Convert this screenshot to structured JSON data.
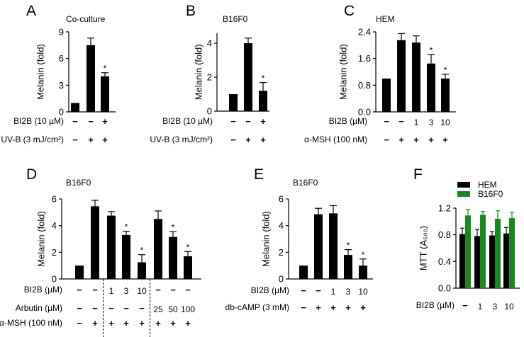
{
  "colors": {
    "black_bar": "#000000",
    "green_bar": "#178a1e"
  },
  "chart_data": [
    {
      "panel": "A",
      "title": "Co-culture",
      "type": "bar",
      "ylabel": "Melanin (fold)",
      "ylim": [
        0,
        9
      ],
      "tick_labels": [
        "0",
        "3",
        "6",
        "9"
      ],
      "series": [
        {
          "values": [
            1.0,
            7.5,
            4.0
          ],
          "error_upper": [
            1.0,
            8.3,
            4.4
          ],
          "significant": [
            false,
            false,
            true
          ]
        }
      ],
      "conditions": [
        {
          "label": "BI2B (10 µM)",
          "cells": [
            "−",
            "−",
            "+"
          ]
        },
        {
          "label": "UV-B (3 mJ/cm²)",
          "cells": [
            "−",
            "+",
            "+"
          ]
        }
      ]
    },
    {
      "panel": "B",
      "title": "B16F0",
      "type": "bar",
      "ylabel": "Melanin (fold)",
      "ylim": [
        0,
        4.6
      ],
      "tick_labels": [
        "0",
        "2",
        "4"
      ],
      "series": [
        {
          "values": [
            1.0,
            4.0,
            1.2
          ],
          "error_upper": [
            1.0,
            4.3,
            1.68
          ],
          "significant": [
            false,
            false,
            true
          ]
        }
      ],
      "conditions": [
        {
          "label": "BI2B (10 µM)",
          "cells": [
            "−",
            "−",
            "+"
          ]
        },
        {
          "label": "UV-B (3 mJ/cm²)",
          "cells": [
            "−",
            "+",
            "+"
          ]
        }
      ]
    },
    {
      "panel": "C",
      "title": "HEM",
      "type": "bar",
      "ylabel": "Melanin (fold)",
      "ylim": [
        0,
        2.4
      ],
      "tick_labels": [
        "0.0",
        "0.8",
        "1.6",
        "2.4"
      ],
      "series": [
        {
          "values": [
            1.0,
            2.15,
            2.08,
            1.45,
            1.0
          ],
          "error_upper": [
            1.0,
            2.35,
            2.28,
            1.72,
            1.13
          ],
          "significant": [
            false,
            false,
            false,
            true,
            true
          ]
        }
      ],
      "conditions": [
        {
          "label": "BI2B (µM)",
          "cells": [
            "−",
            "−",
            "1",
            "3",
            "10"
          ]
        },
        {
          "label": "α-MSH (100 nM)",
          "cells": [
            "−",
            "+",
            "+",
            "+",
            "+"
          ]
        }
      ]
    },
    {
      "panel": "D",
      "title": "B16F0",
      "type": "bar",
      "ylabel": "Melanin (fold)",
      "ylim": [
        0,
        6
      ],
      "tick_labels": [
        "0",
        "2",
        "4",
        "6"
      ],
      "series": [
        {
          "values": [
            1.0,
            5.45,
            4.75,
            3.3,
            1.25,
            4.5,
            3.15,
            1.7
          ],
          "error_upper": [
            1.0,
            5.9,
            5.05,
            3.58,
            1.82,
            5.1,
            3.55,
            2.05
          ],
          "significant": [
            false,
            false,
            false,
            true,
            true,
            false,
            true,
            true
          ]
        }
      ],
      "conditions": [
        {
          "label": "BI2B (µM)",
          "cells": [
            "−",
            "−",
            "1",
            "3",
            "10",
            "−",
            "−",
            "−"
          ]
        },
        {
          "label": "Arbutin (µM)",
          "cells": [
            "−",
            "−",
            "−",
            "−",
            "−",
            "25",
            "50",
            "100"
          ]
        },
        {
          "label": "α-MSH (100 nM)",
          "cells": [
            "−",
            "+",
            "+",
            "+",
            "+",
            "+",
            "+",
            "+"
          ]
        }
      ],
      "group_dividers_after": [
        2,
        5
      ]
    },
    {
      "panel": "E",
      "title": "B16F0",
      "type": "bar",
      "ylabel": "Melanin (fold)",
      "ylim": [
        0,
        6
      ],
      "tick_labels": [
        "0",
        "2",
        "4",
        "6"
      ],
      "series": [
        {
          "values": [
            1.0,
            4.85,
            4.92,
            1.8,
            1.0
          ],
          "error_upper": [
            1.0,
            5.3,
            5.5,
            2.2,
            1.5
          ],
          "significant": [
            false,
            false,
            false,
            true,
            true
          ]
        }
      ],
      "conditions": [
        {
          "label": "BI2B (µM)",
          "cells": [
            "−",
            "−",
            "1",
            "3",
            "10"
          ]
        },
        {
          "label": "db-cAMP (3 mM)",
          "cells": [
            "−",
            "+",
            "+",
            "+",
            "+"
          ]
        }
      ]
    },
    {
      "panel": "F",
      "title": "",
      "type": "bar",
      "ylabel": "MTT (A₅₉₀)",
      "ylim": [
        0,
        1.2
      ],
      "tick_labels": [
        "0.0",
        "0.4",
        "0.8",
        "1.2"
      ],
      "legend_position": "top",
      "series": [
        {
          "name": "HEM",
          "color": "#000000",
          "values": [
            0.81,
            0.78,
            0.79,
            0.82
          ],
          "error_upper": [
            0.9,
            0.88,
            0.85,
            0.91
          ]
        },
        {
          "name": "B16F0",
          "color": "#178a1e",
          "values": [
            1.09,
            1.1,
            1.04,
            1.05
          ],
          "error_upper": [
            1.18,
            1.15,
            1.16,
            1.14
          ]
        }
      ],
      "conditions": [
        {
          "label": "BI2B (µM)",
          "cells": [
            "−",
            "1",
            "3",
            "10"
          ]
        }
      ]
    }
  ]
}
